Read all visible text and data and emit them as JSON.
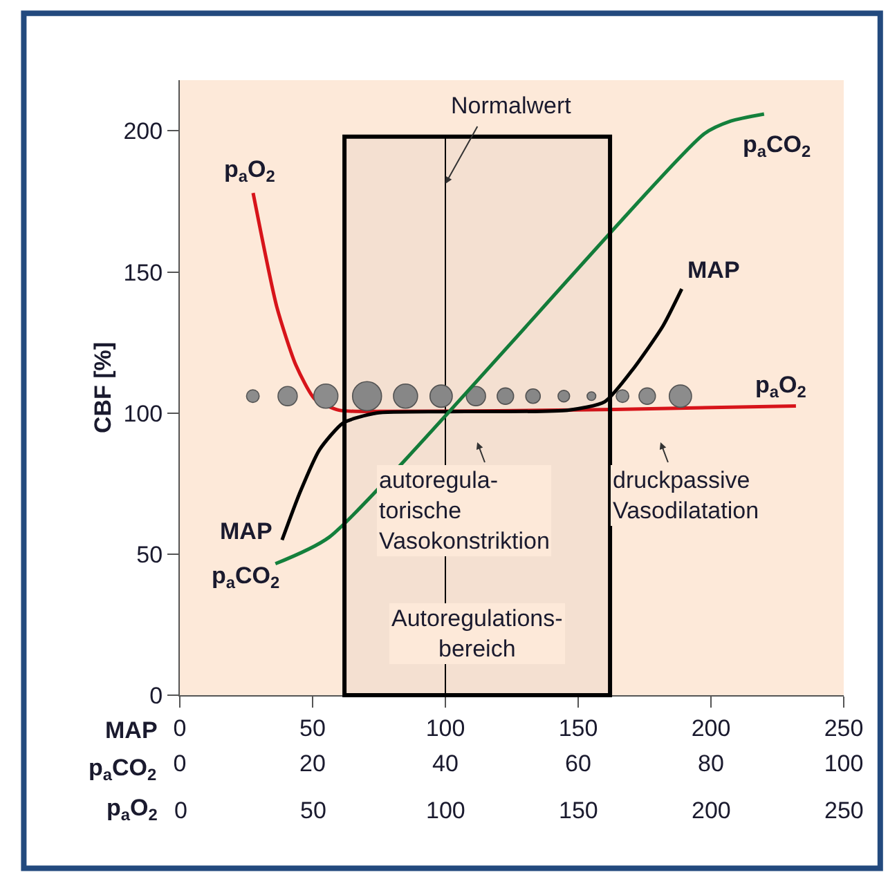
{
  "chart_data": {
    "type": "line",
    "ylabel": "CBF [%]",
    "xlabel": "MAP",
    "x2label": "p$_{a}$CO$_{2}$",
    "xlim": [
      0,
      250
    ],
    "xticks": [
      0,
      50,
      100,
      150,
      200,
      250
    ],
    "x2lim": [
      0,
      100
    ],
    "x2ticks": [
      0,
      20,
      40,
      60,
      80,
      100
    ],
    "ylim": [
      0,
      218
    ],
    "yticks": [
      0,
      50,
      100,
      150,
      200
    ],
    "grid": false,
    "legend": false,
    "marker": "none",
    "series": [
      {
        "name": "p$_{a}$O$_{2}$",
        "color": "#d7141a",
        "x": [
          27.6,
          36.5,
          43.7,
          50.8,
          60,
          80,
          120,
          164,
          232
        ],
        "values": [
          178,
          137.7,
          117,
          105,
          101,
          100.6,
          100.8,
          101.3,
          102.5
        ]
      },
      {
        "name": "MAP",
        "color": "#000000",
        "x": [
          38.5,
          45.3,
          52.6,
          61.5,
          74,
          100,
          146,
          160,
          171,
          182,
          189
        ],
        "values": [
          55,
          72,
          87,
          96.5,
          100,
          100.5,
          101,
          104,
          116,
          131,
          144
        ]
      },
      {
        "name": "p$_{a}$CO$_{2}$",
        "color": "#14803c",
        "axis": "x2",
        "x": [
          14.4,
          22.5,
          79,
          83,
          88
        ],
        "values": [
          46.6,
          56,
          199,
          203.5,
          206
        ]
      },
      {
        "type": "bubble",
        "marker": "circle",
        "color": "#8c8c8c",
        "x": [
          27.5,
          40.6,
          55,
          70.5,
          85,
          98.4,
          111.5,
          122.6,
          133,
          144.6,
          155,
          166.7,
          176,
          188.5
        ],
        "values": [
          106,
          106,
          106,
          106,
          106,
          106,
          106,
          106,
          106,
          106,
          106,
          106,
          106,
          106
        ],
        "sizes": [
          0.19,
          0.44,
          0.69,
          1,
          0.69,
          0.59,
          0.44,
          0.32,
          0.25,
          0.16,
          0.09,
          0.19,
          0.32,
          0.59
        ]
      }
    ],
    "ref_lines": [
      {
        "axis": "x",
        "value": 100,
        "label": "Normalwert"
      }
    ],
    "bands": [
      {
        "axis": "x",
        "from": 62,
        "to": 162,
        "label": "Autoregulations-\nbereich",
        "color": "#000000"
      }
    ],
    "annotations": [
      "p$_{a}$O$_{2}$",
      "0",
      "50",
      "100",
      "150",
      "200",
      "250",
      "autoregula-\ntorische\nVasokonstriktion",
      "druckpassive\nVasodilatation"
    ]
  }
}
